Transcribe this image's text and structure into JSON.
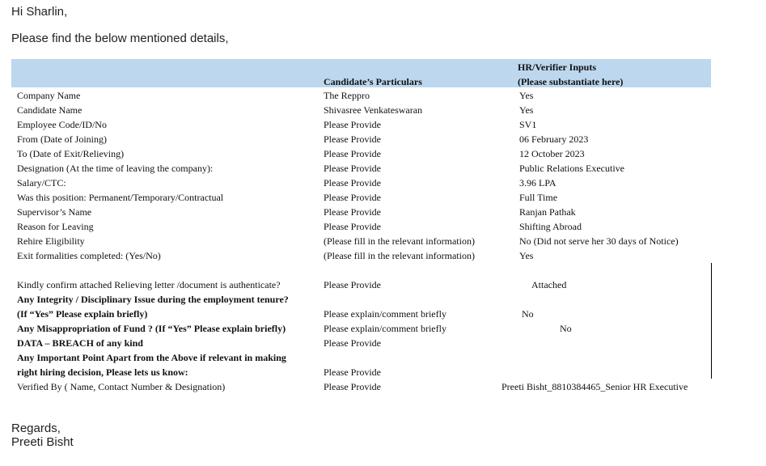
{
  "greeting": "Hi Sharlin,",
  "intro": "Please find the below mentioned details,",
  "table": {
    "headers": {
      "candidate": "Candidate’s Particulars",
      "hr_line1": "HR/Verifier Inputs",
      "hr_line2": "(Please substantiate here)"
    },
    "rows": [
      {
        "label": "Company Name",
        "candidate": "The Reppro",
        "hr": "Yes"
      },
      {
        "label": "Candidate Name",
        "candidate": "Shivasree Venkateswaran",
        "hr": "Yes"
      },
      {
        "label": "Employee Code/ID/No",
        "candidate": "Please Provide",
        "hr": "SV1"
      },
      {
        "label": "From (Date of Joining)",
        "candidate": "Please Provide",
        "hr": "06 February 2023"
      },
      {
        "label": "To (Date of Exit/Relieving)",
        "candidate": "Please Provide",
        "hr": "12 October 2023"
      },
      {
        "label": "Designation (At the time of leaving the company):",
        "candidate": "Please Provide",
        "hr": "Public Relations Executive"
      },
      {
        "label": "Salary/CTC:",
        "candidate": "Please Provide",
        "hr": "3.96 LPA"
      },
      {
        "label": "Was this position: Permanent/Temporary/Contractual",
        "candidate": "Please Provide",
        "hr": "Full Time"
      },
      {
        "label": "Supervisor’s Name",
        "candidate": "Please Provide",
        "hr": "Ranjan Pathak"
      },
      {
        "label": "Reason for Leaving",
        "candidate": "Please Provide",
        "hr": "Shifting Abroad"
      },
      {
        "label": "Rehire Eligibility",
        "candidate": "(Please fill in the relevant information)",
        "hr": "No (Did not serve her 30 days of Notice)"
      },
      {
        "label": "Exit formalities completed: (Yes/No)",
        "candidate": "(Please fill in the relevant information)",
        "hr": "Yes"
      },
      {
        "label": "Kindly confirm attached Relieving letter /document is authenticate?",
        "candidate": "Please Provide",
        "hr": "Attached"
      },
      {
        "label": "Any Integrity / Disciplinary Issue during the employment tenure?",
        "candidate": "",
        "hr": ""
      },
      {
        "label": "(If “Yes” Please explain briefly)",
        "candidate": "Please explain/comment briefly",
        "hr": "No"
      },
      {
        "label": "Any Misappropriation of Fund ? (If “Yes” Please explain briefly)",
        "candidate": "Please explain/comment briefly",
        "hr": "No"
      },
      {
        "label": "DATA – BREACH of any kind",
        "candidate": "Please Provide",
        "hr": ""
      },
      {
        "label": "Any Important Point Apart from the Above if relevant in making",
        "candidate": "",
        "hr": ""
      },
      {
        "label": "right hiring decision, Please lets us know:",
        "candidate": "Please Provide",
        "hr": ""
      },
      {
        "label": "Verified By ( Name, Contact Number & Designation)",
        "candidate": "Please Provide",
        "hr": "Preeti Bisht_8810384465_Senior HR Executive"
      }
    ]
  },
  "closing": "Regards,",
  "signature": "Preeti Bisht"
}
